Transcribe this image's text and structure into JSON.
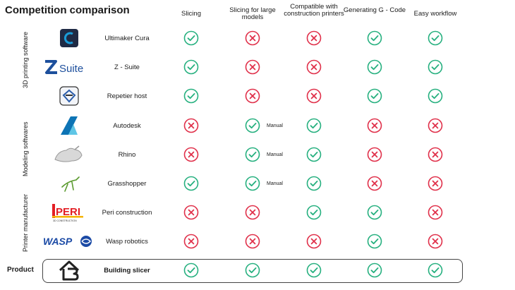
{
  "title": "Competition comparison",
  "columns": [
    "Slicing",
    "Slicing for large models",
    "Compatible with construction printers",
    "Generating G - Code",
    "Easy workflow"
  ],
  "groups": [
    "3D printing software",
    "Modeling softwares",
    "Printer manufacturer"
  ],
  "product_label": "Product",
  "colors": {
    "check": "#26b07f",
    "cross": "#e0304a",
    "box": "#444444"
  },
  "rows": [
    {
      "name": "Ultimaker Cura",
      "logo_icon": "ultimaker-cura-logo",
      "values": [
        "check",
        "cross",
        "cross",
        "check",
        "check"
      ]
    },
    {
      "name": "Z - Suite",
      "logo_icon": "z-suite-logo",
      "logo_text": "Suite",
      "values": [
        "check",
        "cross",
        "cross",
        "check",
        "check"
      ]
    },
    {
      "name": "Repetier host",
      "logo_icon": "repetier-host-logo",
      "values": [
        "check",
        "cross",
        "cross",
        "check",
        "check"
      ]
    },
    {
      "name": "Autodesk",
      "logo_icon": "autodesk-logo",
      "values": [
        "cross",
        "check",
        "check",
        "cross",
        "cross"
      ],
      "note": "Manual"
    },
    {
      "name": "Rhino",
      "logo_icon": "rhino-logo",
      "values": [
        "cross",
        "check",
        "check",
        "cross",
        "cross"
      ],
      "note": "Manual"
    },
    {
      "name": "Grasshopper",
      "logo_icon": "grasshopper-logo",
      "values": [
        "check",
        "check",
        "check",
        "cross",
        "cross"
      ],
      "note": "Manual"
    },
    {
      "name": "Peri construction",
      "logo_icon": "peri-logo",
      "logo_text": "PERI",
      "logo_subtext": "3D CONSTRUCTION",
      "values": [
        "cross",
        "cross",
        "check",
        "check",
        "cross"
      ]
    },
    {
      "name": "Wasp robotics",
      "logo_icon": "wasp-logo",
      "logo_text": "WASP",
      "values": [
        "cross",
        "cross",
        "cross",
        "check",
        "cross"
      ]
    },
    {
      "name": "Building slicer",
      "logo_icon": "building-slicer-logo",
      "values": [
        "check",
        "check",
        "check",
        "check",
        "check"
      ]
    }
  ]
}
